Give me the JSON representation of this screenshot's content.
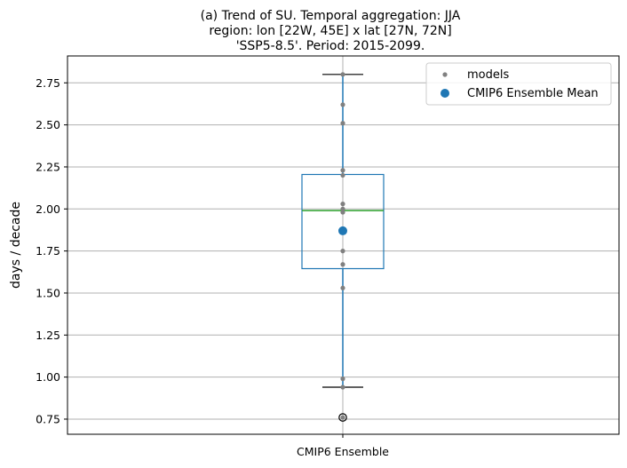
{
  "chart_data": {
    "type": "box",
    "title_lines": [
      "(a) Trend of SU. Temporal aggregation: JJA",
      "region: lon [22W, 45E] x lat [27N, 72N]",
      "'SSP5-8.5'. Period: 2015-2099."
    ],
    "xlabel": "",
    "ylabel": "days / decade",
    "categories": [
      "CMIP6 Ensemble"
    ],
    "ylim": [
      0.66,
      2.91
    ],
    "yticks": [
      0.75,
      1.0,
      1.25,
      1.5,
      1.75,
      2.0,
      2.25,
      2.5,
      2.75
    ],
    "ytick_labels": [
      "0.75",
      "1.00",
      "1.25",
      "1.50",
      "1.75",
      "2.00",
      "2.25",
      "2.50",
      "2.75"
    ],
    "grid": "y-and-x-major",
    "box": {
      "whisker_low": 0.94,
      "q1": 1.645,
      "median": 1.99,
      "q3": 2.205,
      "whisker_high": 2.8,
      "outliers": [
        0.76
      ]
    },
    "models": [
      2.8,
      2.62,
      2.51,
      2.23,
      2.2,
      2.03,
      2.0,
      1.98,
      1.75,
      1.67,
      1.53,
      0.99,
      0.94,
      0.76
    ],
    "ensemble_mean": 1.87,
    "legend": {
      "position": "top-right",
      "entries": [
        {
          "label": "models",
          "marker": "small-gray-dot"
        },
        {
          "label": "CMIP6 Ensemble Mean",
          "marker": "large-blue-dot"
        }
      ]
    },
    "colors": {
      "box": "#1f77b4",
      "median": "#2ca02c",
      "models": "#808080",
      "mean": "#1f77b4",
      "grid": "#b0b0b0",
      "caps": "#000000"
    }
  }
}
